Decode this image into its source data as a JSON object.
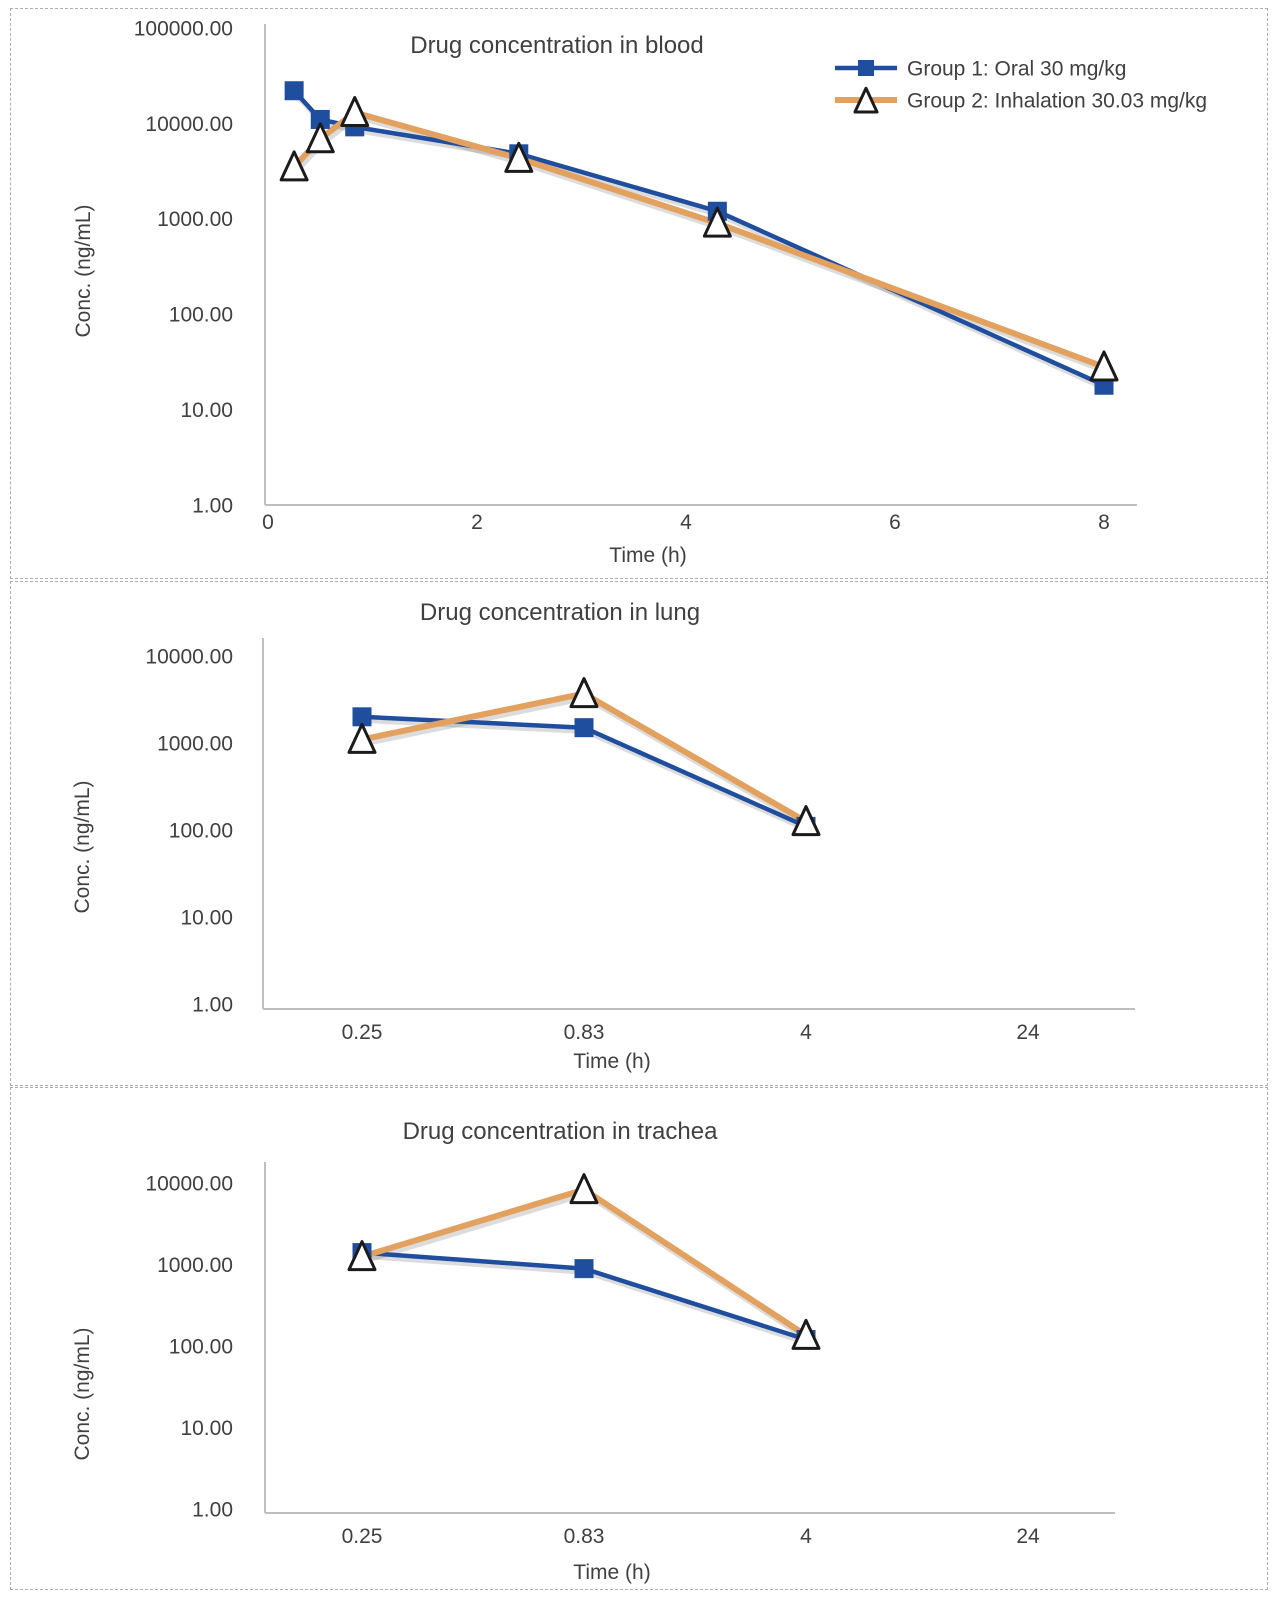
{
  "page": {
    "background": "#ffffff"
  },
  "colors": {
    "group1": "#1F4E9E",
    "group2": "#E3A160",
    "triangle_fill": "#FFFFFF",
    "triangle_stroke": "#1B1B1B",
    "axis_line": "#BFBFBF",
    "text": "#404040",
    "panel_border": "#ADADAD",
    "line_shadow": "rgba(130,130,130,0.28)"
  },
  "legend": {
    "items": [
      {
        "label": "Group 1: Oral 30 mg/kg",
        "marker": "square",
        "color_key": "group1"
      },
      {
        "label": "Group 2: Inhalation 30.03 mg/kg",
        "marker": "triangle",
        "color_key": "group2"
      }
    ]
  },
  "chart_data": [
    {
      "type": "line",
      "title": "Drug concentration in blood",
      "xlabel": "Time (h)",
      "ylabel": "Conc. (ng/mL)",
      "x_scale": "linear",
      "y_scale": "log",
      "xlim": [
        0,
        8.3
      ],
      "ylim": [
        1,
        100000
      ],
      "x_ticks": [
        0,
        2,
        4,
        6,
        8
      ],
      "y_ticks": [
        "100000.00",
        "10000.00",
        "1000.00",
        "100.00",
        "10.00",
        "1.00"
      ],
      "grid": false,
      "legend": true,
      "legend_position": "top-right",
      "series": [
        {
          "name": "Group 1: Oral 30 mg/kg",
          "marker": "square",
          "color_key": "group1",
          "points": [
            [
              0.25,
              22000
            ],
            [
              0.5,
              11000
            ],
            [
              0.83,
              9200
            ],
            [
              2.4,
              4800
            ],
            [
              4.3,
              1200
            ],
            [
              8,
              18
            ]
          ]
        },
        {
          "name": "Group 2: Inhalation 30.03 mg/kg",
          "marker": "triangle",
          "color_key": "group2",
          "points": [
            [
              0.25,
              3500
            ],
            [
              0.5,
              6900
            ],
            [
              0.83,
              13000
            ],
            [
              2.4,
              4300
            ],
            [
              4.3,
              900
            ],
            [
              8,
              28
            ]
          ]
        }
      ]
    },
    {
      "type": "line",
      "title": "Drug concentration in lung",
      "xlabel": "Time (h)",
      "ylabel": "Conc. (ng/mL)",
      "x_scale": "categorical",
      "y_scale": "log",
      "ylim": [
        1,
        10000
      ],
      "categories": [
        "0.25",
        "0.83",
        "4",
        "24"
      ],
      "y_ticks": [
        "10000.00",
        "1000.00",
        "100.00",
        "10.00",
        "1.00"
      ],
      "grid": false,
      "legend": false,
      "series": [
        {
          "name": "Group 1: Oral 30 mg/kg",
          "marker": "square",
          "color_key": "group1",
          "values": [
            2000,
            1500,
            110,
            null
          ]
        },
        {
          "name": "Group 2: Inhalation 30.03 mg/kg",
          "marker": "triangle",
          "color_key": "group2",
          "values": [
            1100,
            3700,
            125,
            null
          ]
        }
      ]
    },
    {
      "type": "line",
      "title": "Drug concentration in trachea",
      "xlabel": "Time (h)",
      "ylabel": "Conc. (ng/mL)",
      "x_scale": "categorical",
      "y_scale": "log",
      "ylim": [
        1,
        10000
      ],
      "categories": [
        "0.25",
        "0.83",
        "4",
        "24"
      ],
      "y_ticks": [
        "10000.00",
        "1000.00",
        "100.00",
        "10.00",
        "1.00"
      ],
      "grid": false,
      "legend": false,
      "series": [
        {
          "name": "Group 1: Oral 30 mg/kg",
          "marker": "square",
          "color_key": "group1",
          "values": [
            1400,
            890,
            120,
            null
          ]
        },
        {
          "name": "Group 2: Inhalation 30.03 mg/kg",
          "marker": "triangle",
          "color_key": "group2",
          "values": [
            1250,
            8300,
            135,
            null
          ]
        }
      ]
    }
  ]
}
